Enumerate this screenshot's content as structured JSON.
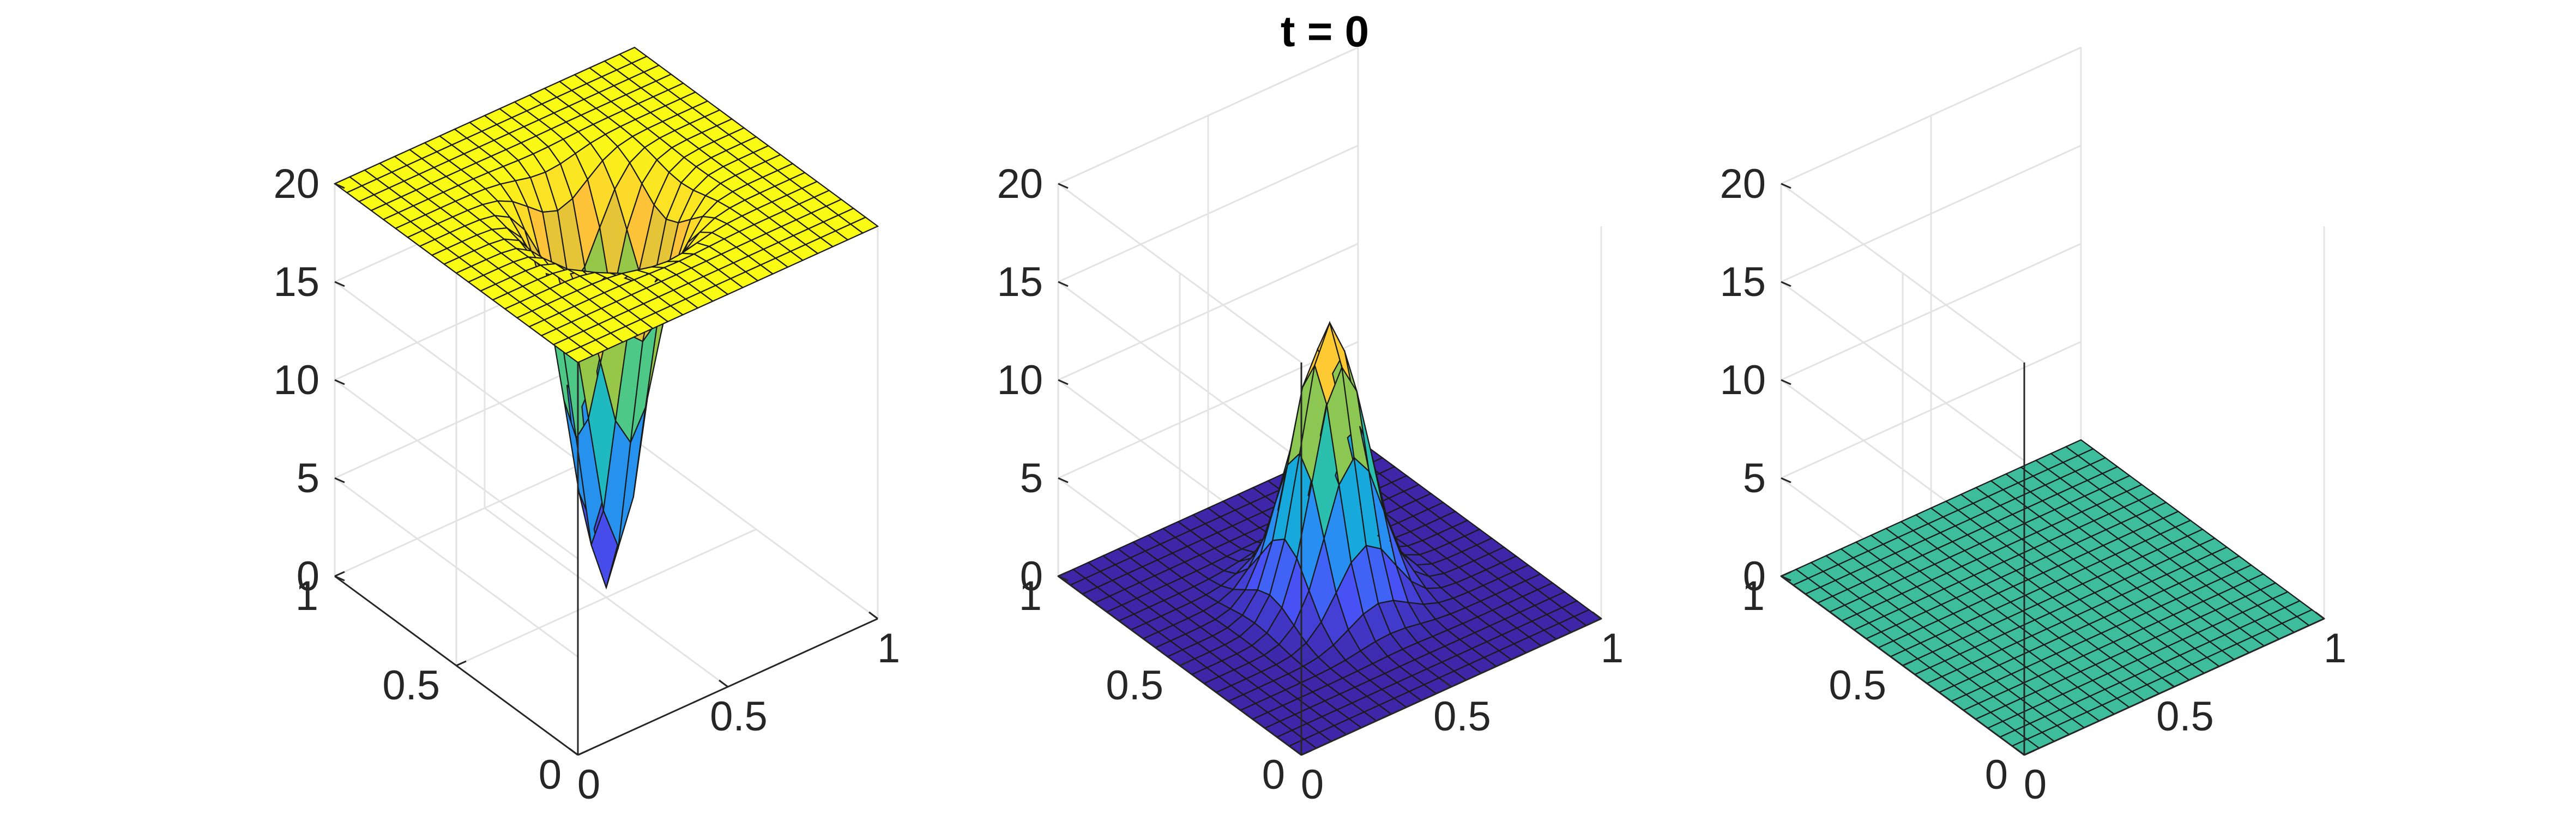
{
  "figure": {
    "title": "t = 0"
  },
  "chart_data": [
    {
      "type": "surface",
      "panel": "left",
      "title": "",
      "xlabel": "",
      "ylabel": "",
      "zlabel": "",
      "xlim": [
        0,
        1
      ],
      "ylim": [
        0,
        1
      ],
      "zlim": [
        0,
        20
      ],
      "x_ticks": [
        "0",
        "0.5",
        "1"
      ],
      "y_ticks": [
        "0",
        "0.5",
        "1"
      ],
      "z_ticks": [
        "0",
        "5",
        "10",
        "15",
        "20"
      ],
      "grid": "on",
      "colormap": "parula",
      "grid_points": 21,
      "function": "z = 20 - 19.5 * exp(-((x-0.5)^2 + (y-0.5)^2) / 0.018)",
      "z_min": 0.5,
      "z_max": 20
    },
    {
      "type": "surface",
      "panel": "middle",
      "title": "",
      "xlabel": "",
      "ylabel": "",
      "zlabel": "",
      "xlim": [
        0,
        1
      ],
      "ylim": [
        0,
        1
      ],
      "zlim": [
        0,
        20
      ],
      "x_ticks": [
        "0",
        "0.5",
        "1"
      ],
      "y_ticks": [
        "0",
        "0.5",
        "1"
      ],
      "z_ticks": [
        "0",
        "5",
        "10",
        "15",
        "20"
      ],
      "grid": "on",
      "colormap": "parula",
      "grid_points": 21,
      "function": "z = 14 * exp(-((x-0.5)^2 + (y-0.5)^2) / 0.018)",
      "z_min": 0,
      "z_max": 14
    },
    {
      "type": "surface",
      "panel": "right",
      "title": "",
      "xlabel": "",
      "ylabel": "",
      "zlabel": "",
      "xlim": [
        0,
        1
      ],
      "ylim": [
        0,
        1
      ],
      "zlim": [
        0,
        20
      ],
      "x_ticks": [
        "0",
        "0.5",
        "1"
      ],
      "y_ticks": [
        "0",
        "0.5",
        "1"
      ],
      "z_ticks": [
        "0",
        "5",
        "10",
        "15",
        "20"
      ],
      "grid": "on",
      "colormap": "parula",
      "grid_points": 21,
      "function": "z = 0",
      "z_min": 0,
      "z_max": 0,
      "face_color": "#3dbd9c"
    }
  ]
}
